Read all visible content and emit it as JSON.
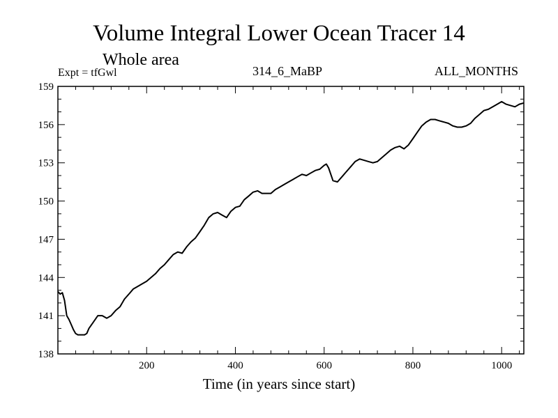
{
  "chart_data": {
    "type": "line",
    "title": "Volume Integral Lower Ocean Tracer 14",
    "subtitle": "Whole area",
    "left_label": "Expt = tfGwl",
    "center_label": "314_6_MaBP",
    "right_label": "ALL_MONTHS",
    "xlabel": "Time (in years since start)",
    "ylabel": "",
    "xlim": [
      0,
      1050
    ],
    "ylim": [
      138,
      159
    ],
    "x_ticks": [
      200,
      400,
      600,
      800,
      1000
    ],
    "y_ticks": [
      138,
      141,
      144,
      147,
      150,
      153,
      156,
      159
    ],
    "series": [
      {
        "name": "Volume Integral",
        "x": [
          0,
          5,
          10,
          15,
          20,
          25,
          30,
          35,
          40,
          45,
          50,
          55,
          60,
          65,
          70,
          80,
          90,
          100,
          110,
          120,
          130,
          140,
          150,
          160,
          170,
          180,
          190,
          200,
          210,
          220,
          230,
          240,
          250,
          260,
          270,
          280,
          290,
          300,
          310,
          320,
          330,
          340,
          350,
          360,
          370,
          380,
          390,
          400,
          410,
          420,
          430,
          440,
          450,
          460,
          470,
          480,
          490,
          500,
          510,
          520,
          530,
          540,
          550,
          560,
          570,
          580,
          590,
          600,
          605,
          610,
          620,
          630,
          640,
          650,
          660,
          670,
          680,
          690,
          700,
          710,
          720,
          730,
          740,
          750,
          760,
          770,
          780,
          790,
          800,
          810,
          820,
          830,
          840,
          850,
          860,
          870,
          880,
          890,
          900,
          910,
          920,
          930,
          940,
          950,
          960,
          970,
          980,
          990,
          1000,
          1010,
          1020,
          1030,
          1040,
          1050
        ],
        "values": [
          142.9,
          142.7,
          142.8,
          142.2,
          141.0,
          140.7,
          140.3,
          139.9,
          139.6,
          139.5,
          139.5,
          139.5,
          139.5,
          139.6,
          140.0,
          140.5,
          141.0,
          141.0,
          140.8,
          141.0,
          141.4,
          141.7,
          142.3,
          142.7,
          143.1,
          143.3,
          143.5,
          143.7,
          144.0,
          144.3,
          144.7,
          145.0,
          145.4,
          145.8,
          146.0,
          145.9,
          146.4,
          146.8,
          147.1,
          147.6,
          148.1,
          148.7,
          149.0,
          149.1,
          148.9,
          148.7,
          149.2,
          149.5,
          149.6,
          150.1,
          150.4,
          150.7,
          150.8,
          150.6,
          150.6,
          150.6,
          150.9,
          151.1,
          151.3,
          151.5,
          151.7,
          151.9,
          152.1,
          152.0,
          152.2,
          152.4,
          152.5,
          152.8,
          152.9,
          152.6,
          151.6,
          151.5,
          151.9,
          152.3,
          152.7,
          153.1,
          153.3,
          153.2,
          153.1,
          153.0,
          153.1,
          153.4,
          153.7,
          154.0,
          154.2,
          154.3,
          154.1,
          154.4,
          154.9,
          155.4,
          155.9,
          156.2,
          156.4,
          156.4,
          156.3,
          156.2,
          156.1,
          155.9,
          155.8,
          155.8,
          155.9,
          156.1,
          156.5,
          156.8,
          157.1,
          157.2,
          157.4,
          157.6,
          157.8,
          157.6,
          157.5,
          157.4,
          157.6,
          157.7
        ]
      }
    ]
  }
}
